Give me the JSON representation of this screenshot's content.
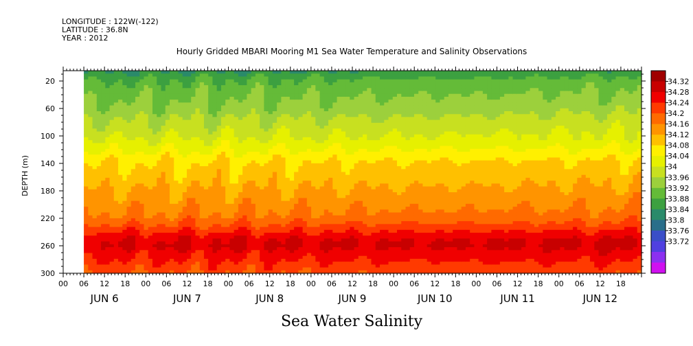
{
  "header": {
    "longitude": "LONGITUDE : 122W(-122)",
    "latitude": "LATITUDE : 36.8N",
    "year": "YEAR : 2012",
    "title": "Hourly Gridded MBARI Mooring M1 Sea Water Temperature and Salinity Observations"
  },
  "footer": {
    "variable_label": "Sea Water Salinity"
  },
  "chart_data": {
    "type": "heatmap",
    "title": "Hourly Gridded MBARI Mooring M1 Sea Water Temperature and Salinity Observations",
    "xlabel": "",
    "ylabel": "DEPTH (m)",
    "colorbar_label": "Sea Water Salinity",
    "x_range_hours": [
      0,
      168
    ],
    "data_start": "JUN 6 06:00",
    "y_ticks": [
      "20",
      "60",
      "100",
      "140",
      "180",
      "220",
      "260",
      "300"
    ],
    "y_range": [
      300,
      5
    ],
    "x_hour_ticks": [
      "00",
      "06",
      "12",
      "18",
      "00",
      "06",
      "12",
      "18",
      "00",
      "06",
      "12",
      "18",
      "00",
      "06",
      "12",
      "18",
      "00",
      "06",
      "12",
      "18",
      "00",
      "06",
      "12",
      "18",
      "00",
      "06",
      "12",
      "18"
    ],
    "x_days": [
      "JUN  6",
      "JUN  7",
      "JUN  8",
      "JUN  9",
      "JUN 10",
      "JUN 11",
      "JUN 12"
    ],
    "colorbar_levels": [
      "34.32",
      "34.28",
      "34.24",
      "34.2",
      "34.16",
      "34.12",
      "34.08",
      "34.04",
      "34",
      "33.96",
      "33.92",
      "33.88",
      "33.84",
      "33.8",
      "33.76",
      "33.72"
    ],
    "colorbar_colors": [
      "#a00000",
      "#c80000",
      "#f00000",
      "#ff3a00",
      "#ff6a00",
      "#ff9400",
      "#ffc000",
      "#fff000",
      "#e6f000",
      "#c8e020",
      "#9cd03c",
      "#64bb38",
      "#3ca040",
      "#2a8a6a",
      "#2a6e8a",
      "#3a4ec8",
      "#5040e0",
      "#8c30f0",
      "#d010f0"
    ],
    "salinity_profile_by_depth": [
      {
        "depth": 5,
        "value": 33.83
      },
      {
        "depth": 20,
        "value": 33.88
      },
      {
        "depth": 60,
        "value": 33.93
      },
      {
        "depth": 100,
        "value": 33.99
      },
      {
        "depth": 140,
        "value": 34.08
      },
      {
        "depth": 180,
        "value": 34.12
      },
      {
        "depth": 220,
        "value": 34.17
      },
      {
        "depth": 250,
        "value": 34.27
      },
      {
        "depth": 260,
        "value": 34.28
      },
      {
        "depth": 300,
        "value": 34.2
      }
    ]
  }
}
